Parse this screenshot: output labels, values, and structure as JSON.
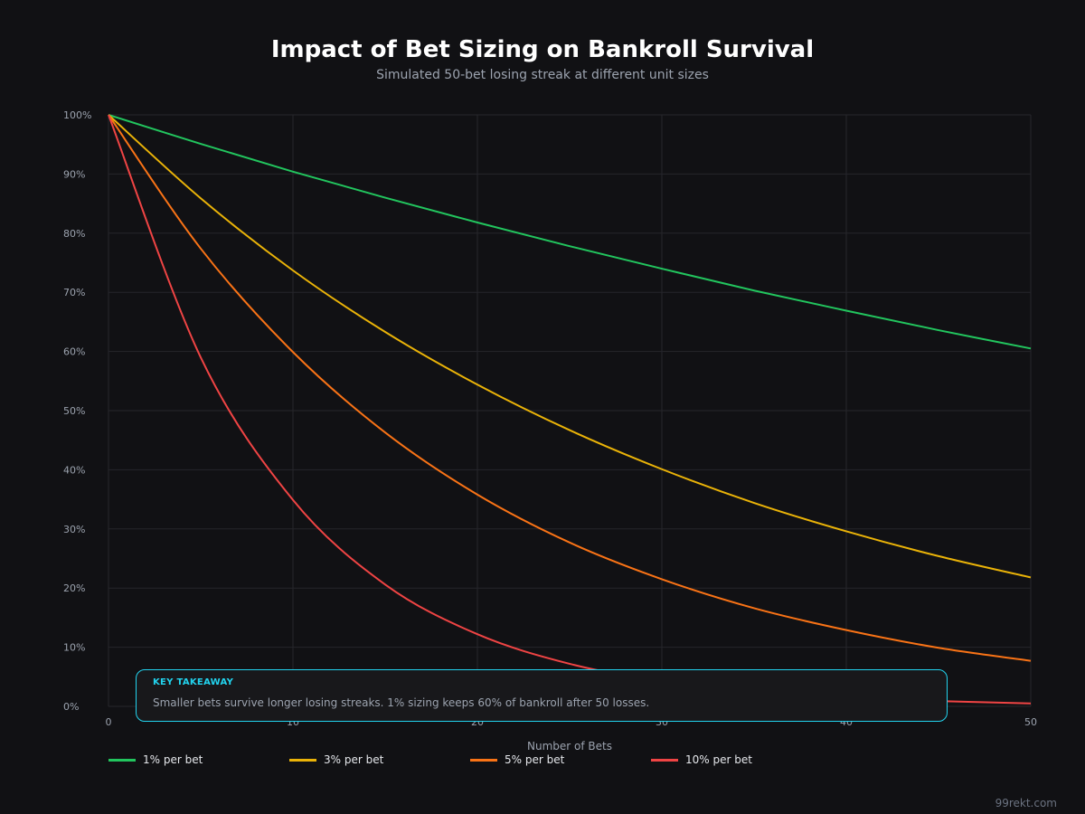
{
  "chart_data": {
    "type": "line",
    "title": "Impact of Bet Sizing on Bankroll Survival",
    "subtitle": "Simulated 50-bet losing streak at different unit sizes",
    "xlabel": "Number of Bets",
    "ylabel": "",
    "xlim": [
      0,
      50
    ],
    "ylim": [
      0,
      100
    ],
    "x_ticks": [
      "0",
      "10",
      "20",
      "30",
      "40",
      "50"
    ],
    "y_ticks": [
      "0%",
      "10%",
      "20%",
      "30%",
      "40%",
      "50%",
      "60%",
      "70%",
      "80%",
      "90%",
      "100%"
    ],
    "grid": true,
    "legend_position": "bottom",
    "x": [
      0,
      5,
      10,
      15,
      20,
      25,
      30,
      35,
      40,
      45,
      50
    ],
    "series": [
      {
        "name": "1% per bet",
        "color": "#22c55e",
        "values": [
          100,
          95.1,
          90.4,
          86.0,
          81.8,
          77.8,
          74.0,
          70.3,
          66.9,
          63.6,
          60.5
        ]
      },
      {
        "name": "3% per bet",
        "color": "#eab308",
        "values": [
          100,
          85.9,
          73.7,
          63.3,
          54.4,
          46.7,
          40.1,
          34.4,
          29.6,
          25.4,
          21.8
        ]
      },
      {
        "name": "5% per bet",
        "color": "#f97316",
        "values": [
          100,
          77.4,
          59.9,
          46.3,
          35.8,
          27.7,
          21.5,
          16.6,
          12.9,
          9.9,
          7.7
        ]
      },
      {
        "name": "10% per bet",
        "color": "#ef4444",
        "values": [
          100,
          59.0,
          34.9,
          20.6,
          12.2,
          7.2,
          4.2,
          2.5,
          1.5,
          0.9,
          0.5
        ]
      }
    ]
  },
  "takeaway": {
    "label": "KEY TAKEAWAY",
    "text": "Smaller bets survive longer losing streaks. 1% sizing keeps 60% of bankroll after 50 losses.",
    "border_color": "#22d3ee"
  },
  "footer": "99rekt.com"
}
